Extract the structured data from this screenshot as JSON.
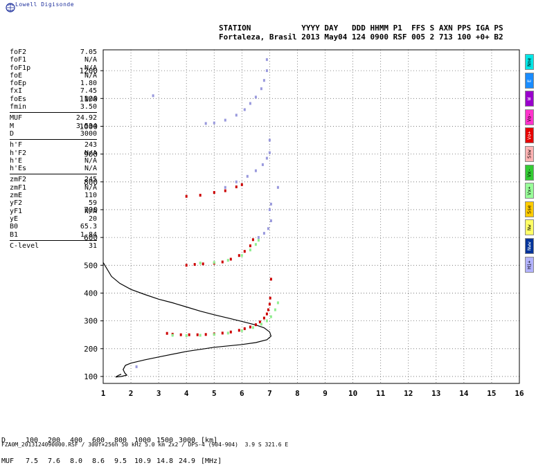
{
  "logo": {
    "text": "Lowell Digisonde"
  },
  "header": {
    "line1": "STATION           YYYY DAY   DDD HHMM P1  FFS S AXN PPS IGA PS",
    "line2": "Fortaleza, Brasil 2013 May04 124 0900 RSF 005 2 713 100 +0+ B2"
  },
  "params": {
    "groups": [
      [
        {
          "k": "foF2",
          "v": "7.05"
        },
        {
          "k": "foF1",
          "v": "N/A"
        },
        {
          "k": "foF1p",
          "v": "N/A"
        },
        {
          "k": "foE",
          "v": "N/A"
        },
        {
          "k": "foEp",
          "v": "1.80"
        },
        {
          "k": "fxI",
          "v": "7.45"
        },
        {
          "k": "foEs",
          "v": "N/A"
        },
        {
          "k": "fmin",
          "v": "3.50"
        }
      ],
      [
        {
          "k": "MUF",
          "v": "24.92"
        },
        {
          "k": "M",
          "v": "3.534"
        },
        {
          "k": "D",
          "v": "3000"
        }
      ],
      [
        {
          "k": "h'F",
          "v": "243"
        },
        {
          "k": "h'F2",
          "v": "N/A"
        },
        {
          "k": "h'E",
          "v": "N/A"
        },
        {
          "k": "h'Es",
          "v": "N/A"
        }
      ],
      [
        {
          "k": "zmF2",
          "v": "245"
        },
        {
          "k": "zmF1",
          "v": "N/A"
        },
        {
          "k": "zmE",
          "v": "110"
        },
        {
          "k": "yF2",
          "v": "59"
        },
        {
          "k": "yF1",
          "v": "N/A"
        },
        {
          "k": "yE",
          "v": "20"
        },
        {
          "k": "B0",
          "v": "65.3"
        },
        {
          "k": "B1",
          "v": "1.84"
        }
      ],
      [
        {
          "k": "C-level",
          "v": "31"
        }
      ]
    ]
  },
  "legend": [
    {
      "label": "Nne",
      "color": "#00e6e6"
    },
    {
      "label": "E",
      "color": "#1a8cff"
    },
    {
      "label": "W",
      "color": "#9900cc"
    },
    {
      "label": "Vo-",
      "color": "#ff33cc"
    },
    {
      "label": "Vo+",
      "color": "#e60000"
    },
    {
      "label": "Ssw",
      "color": "#ffb3b3"
    },
    {
      "label": "Vx-",
      "color": "#33cc33"
    },
    {
      "label": "Vx+",
      "color": "#99ff99"
    },
    {
      "label": "Sse",
      "color": "#ffcc00"
    },
    {
      "label": "Nw",
      "color": "#ffff66"
    },
    {
      "label": "Nww",
      "color": "#003399"
    },
    {
      "label": "Hi+",
      "color": "#b3b3ff"
    }
  ],
  "footer": {
    "d_label": "D",
    "d_values": [
      "100",
      "200",
      "400",
      "600",
      "800",
      "1000",
      "1500",
      "3000"
    ],
    "d_unit": "[km]",
    "muf_label": "MUF",
    "muf_values": [
      "7.5",
      "7.6",
      "8.0",
      "8.6",
      "9.5",
      "10.9",
      "14.8",
      "24.9"
    ],
    "muf_unit": "[MHz]",
    "file_info": "FZA0M_2013124090000.RSF / 300f×256h 50 kHz 5.0 km 2x2 / DPS-4 (904-904)  3.9 S 321.6 E"
  },
  "chart_data": {
    "type": "scatter",
    "title": "",
    "xlabel": "",
    "ylabel": "",
    "xlim": [
      1,
      16
    ],
    "ylim": [
      75,
      1275
    ],
    "x_ticks": [
      "1",
      "2",
      "3",
      "4",
      "5",
      "6",
      "7",
      "8",
      "9",
      "10",
      "11",
      "12",
      "13",
      "14",
      "15",
      "16"
    ],
    "y_ticks": [
      "100",
      "200",
      "300",
      "400",
      "500",
      "600",
      "700",
      "800",
      "900",
      "1000",
      "1100",
      "1200"
    ],
    "grid": true,
    "series": [
      {
        "color": "#cc0000",
        "points": [
          [
            3.3,
            255
          ],
          [
            3.5,
            252
          ],
          [
            3.8,
            250
          ],
          [
            4.1,
            250
          ],
          [
            4.4,
            250
          ],
          [
            4.7,
            251
          ],
          [
            5.0,
            253
          ],
          [
            5.3,
            256
          ],
          [
            5.6,
            260
          ],
          [
            5.9,
            266
          ],
          [
            6.1,
            272
          ],
          [
            6.3,
            278
          ],
          [
            6.5,
            286
          ],
          [
            6.65,
            296
          ],
          [
            6.8,
            310
          ],
          [
            6.9,
            325
          ],
          [
            6.95,
            340
          ],
          [
            7.0,
            360
          ],
          [
            7.02,
            382
          ],
          [
            7.05,
            450
          ],
          [
            4.0,
            500
          ],
          [
            4.3,
            503
          ],
          [
            4.6,
            505
          ],
          [
            5.0,
            507
          ],
          [
            5.3,
            512
          ],
          [
            5.6,
            522
          ],
          [
            5.9,
            535
          ],
          [
            6.1,
            550
          ],
          [
            6.3,
            570
          ],
          [
            6.4,
            592
          ],
          [
            4.0,
            748
          ],
          [
            4.5,
            752
          ],
          [
            5.0,
            762
          ],
          [
            5.4,
            768
          ],
          [
            5.8,
            782
          ],
          [
            6.0,
            790
          ]
        ]
      },
      {
        "color": "#90ee90",
        "points": [
          [
            3.5,
            248
          ],
          [
            4.0,
            247
          ],
          [
            4.5,
            248
          ],
          [
            5.0,
            251
          ],
          [
            5.5,
            256
          ],
          [
            6.0,
            265
          ],
          [
            6.4,
            276
          ],
          [
            6.7,
            288
          ],
          [
            6.9,
            300
          ],
          [
            7.05,
            315
          ],
          [
            7.2,
            340
          ],
          [
            7.3,
            365
          ],
          [
            4.5,
            508
          ],
          [
            5.0,
            510
          ],
          [
            5.5,
            518
          ],
          [
            6.0,
            535
          ],
          [
            6.3,
            555
          ],
          [
            6.5,
            575
          ],
          [
            6.6,
            590
          ]
        ]
      },
      {
        "color": "#9999dd",
        "points": [
          [
            6.6,
            600
          ],
          [
            6.8,
            615
          ],
          [
            6.95,
            632
          ],
          [
            7.05,
            660
          ],
          [
            7.0,
            700
          ],
          [
            7.05,
            720
          ],
          [
            7.3,
            780
          ],
          [
            5.4,
            780
          ],
          [
            5.8,
            800
          ],
          [
            6.2,
            820
          ],
          [
            6.5,
            840
          ],
          [
            6.75,
            862
          ],
          [
            6.9,
            885
          ],
          [
            7.0,
            905
          ],
          [
            7.0,
            950
          ],
          [
            4.7,
            1010
          ],
          [
            5.0,
            1012
          ],
          [
            5.4,
            1022
          ],
          [
            5.8,
            1040
          ],
          [
            6.1,
            1060
          ],
          [
            6.3,
            1082
          ],
          [
            6.5,
            1105
          ],
          [
            6.7,
            1135
          ],
          [
            6.8,
            1165
          ],
          [
            6.9,
            1200
          ],
          [
            6.9,
            1240
          ],
          [
            2.8,
            1110
          ],
          [
            2.2,
            135
          ]
        ]
      }
    ],
    "profile": {
      "color": "#000000",
      "points": [
        [
          1.0,
          510
        ],
        [
          1.3,
          460
        ],
        [
          1.6,
          435
        ],
        [
          2.0,
          413
        ],
        [
          2.5,
          395
        ],
        [
          3.0,
          378
        ],
        [
          3.5,
          365
        ],
        [
          4.0,
          350
        ],
        [
          4.5,
          335
        ],
        [
          5.0,
          322
        ],
        [
          5.5,
          310
        ],
        [
          6.0,
          298
        ],
        [
          6.5,
          285
        ],
        [
          6.8,
          275
        ],
        [
          7.0,
          260
        ],
        [
          7.05,
          245
        ],
        [
          6.9,
          232
        ],
        [
          6.5,
          222
        ],
        [
          6.0,
          215
        ],
        [
          5.0,
          205
        ],
        [
          4.0,
          190
        ],
        [
          3.0,
          170
        ],
        [
          2.5,
          160
        ],
        [
          2.0,
          148
        ],
        [
          1.8,
          140
        ],
        [
          1.72,
          125
        ],
        [
          1.78,
          112
        ],
        [
          1.85,
          105
        ],
        [
          1.65,
          100
        ],
        [
          1.45,
          98
        ],
        [
          1.55,
          104
        ],
        [
          1.65,
          108
        ]
      ]
    }
  }
}
